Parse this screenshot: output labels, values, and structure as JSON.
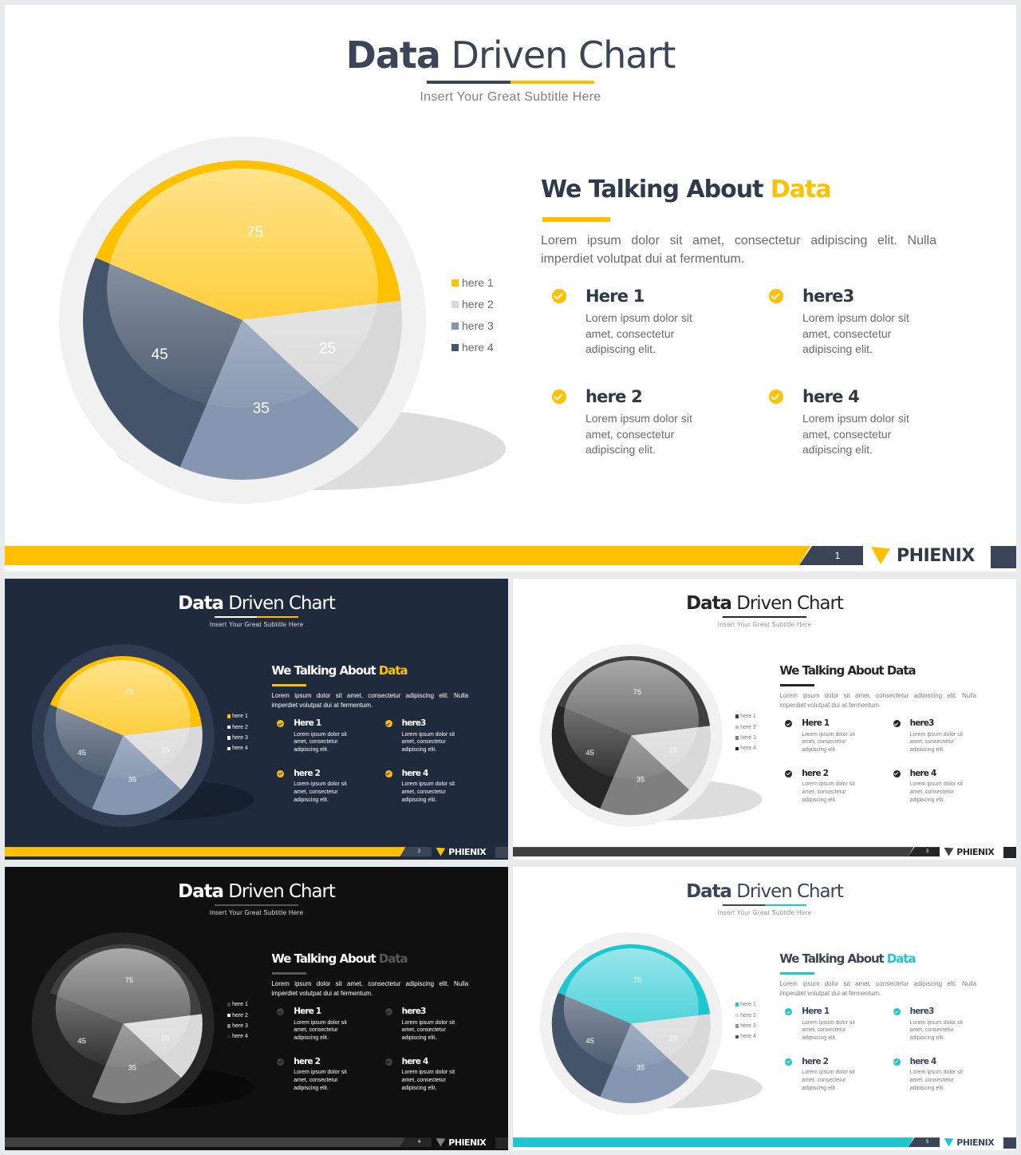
{
  "chart_data": {
    "type": "pie",
    "categories": [
      "here 1",
      "here 2",
      "here 3",
      "here 4"
    ],
    "values": [
      75,
      25,
      35,
      45
    ]
  },
  "deck": {
    "title_bold": "Data",
    "title_rest": "Driven Chart",
    "subtitle": "Insert  Your Great Subtitle Here",
    "brand": "PHIENIX",
    "heading_main": "We Talking About",
    "heading_word": "Data",
    "body": "Lorem ipsum dolor sit amet, consectetur adipiscing elit. Nulla imperdiet volutpat dui at fermentum.",
    "features": [
      {
        "title": "Here 1",
        "desc": "Lorem ipsum dolor sit amet, consectetur adipiscing elit."
      },
      {
        "title": "here3",
        "desc": "Lorem ipsum dolor sit amet, consectetur adipiscing elit."
      },
      {
        "title": "here 2",
        "desc": "Lorem ipsum dolor sit amet, consectetur adipiscing elit."
      },
      {
        "title": "here 4",
        "desc": "Lorem ipsum dolor sit amet, consectetur adipiscing elit."
      }
    ],
    "check_icon": "check-icon",
    "logo_icon": "phienix-logo-icon"
  },
  "slides": [
    {
      "page": "1",
      "bg": "#ffffff",
      "ring": "#f1f1f1",
      "shadow": "#dddddd",
      "title_color": "#3b4557",
      "text_color": "#6b6b6b",
      "heading_color": "#2f3a4b",
      "accent": "#ffc000",
      "rule_left": "#3b4557",
      "rule_right": "#ffc000",
      "footer": "#ffc000",
      "page_box": "#3b4557",
      "brand_color": "#2f3a4b",
      "end_box": "#3b4557",
      "pie_colors": [
        "#ffc000",
        "#d9d9d9",
        "#8496b0",
        "#44546a"
      ],
      "legend_colors": [
        "#ffc000",
        "#d9d9d9",
        "#8496b0",
        "#44546a"
      ],
      "check_color": "#ffc000"
    },
    {
      "page": "2",
      "bg": "#1f2a3c",
      "ring": "#2f3b50",
      "shadow": "#17202e",
      "title_color": "#ffffff",
      "text_color": "#ffffff",
      "heading_color": "#ffffff",
      "accent": "#ffc000",
      "rule_left": "#ffffff",
      "rule_right": "#ffc000",
      "footer": "#ffc000",
      "page_box": "#3b4557",
      "brand_color": "#ffffff",
      "end_box": "#3b4557",
      "pie_colors": [
        "#ffc000",
        "#d9d9d9",
        "#8496b0",
        "#44546a"
      ],
      "legend_colors": [
        "#ffc000",
        "#ffffff",
        "#ffffff",
        "#ffffff"
      ],
      "check_color": "#ffc000"
    },
    {
      "page": "3",
      "bg": "#ffffff",
      "ring": "#f1f1f1",
      "shadow": "#dddddd",
      "title_color": "#262626",
      "text_color": "#7f7f7f",
      "heading_color": "#262626",
      "accent": "#262626",
      "rule_left": "#262626",
      "rule_right": "#262626",
      "footer": "#404040",
      "page_box": "#262626",
      "brand_color": "#262626",
      "end_box": "#262626",
      "pie_colors": [
        "#404040",
        "#d9d9d9",
        "#7f7f7f",
        "#262626"
      ],
      "legend_colors": [
        "#404040",
        "#bfbfbf",
        "#7f7f7f",
        "#262626"
      ],
      "check_color": "#262626"
    },
    {
      "page": "4",
      "bg": "#101010",
      "ring": "#262626",
      "shadow": "#0a0a0a",
      "title_color": "#ffffff",
      "text_color": "#ffffff",
      "heading_color": "#ffffff",
      "accent": "#595959",
      "rule_left": "#595959",
      "rule_right": "#595959",
      "footer": "#404040",
      "page_box": "#262626",
      "brand_color": "#ffffff",
      "end_box": "#262626",
      "pie_colors": [
        "#404040",
        "#d9d9d9",
        "#7f7f7f",
        "#262626"
      ],
      "legend_colors": [
        "#404040",
        "#ffffff",
        "#7f7f7f",
        "#262626"
      ],
      "check_color": "#404040"
    },
    {
      "page": "5",
      "bg": "#ffffff",
      "ring": "#f1f1f1",
      "shadow": "#dddddd",
      "title_color": "#3b4557",
      "text_color": "#7f7f7f",
      "heading_color": "#3b4557",
      "accent": "#1cc7d0",
      "rule_left": "#3b4557",
      "rule_right": "#1cc7d0",
      "footer": "#1cc7d0",
      "page_box": "#3b4557",
      "brand_color": "#3b4557",
      "end_box": "#3b4557",
      "pie_colors": [
        "#1cc7d0",
        "#d9d9d9",
        "#8496b0",
        "#44546a"
      ],
      "legend_colors": [
        "#1cc7d0",
        "#d9d9d9",
        "#8496b0",
        "#44546a"
      ],
      "check_color": "#1cc7d0"
    }
  ]
}
